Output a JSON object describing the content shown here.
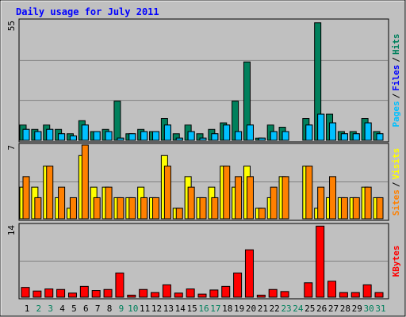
{
  "chart_data": [
    {
      "type": "bar",
      "title": "Daily usage for July 2011",
      "ylim": [
        0,
        55
      ],
      "yticks": [
        55
      ],
      "legend_separator": "/",
      "series": [
        {
          "name": "Hits",
          "color": "#00805c",
          "values": [
            7,
            5,
            7,
            5,
            3,
            9,
            4,
            5,
            18,
            3,
            5,
            4,
            10,
            3,
            7,
            3,
            5,
            8,
            18,
            36,
            1,
            7,
            6,
            0,
            10,
            54,
            12,
            4,
            4,
            10,
            4
          ]
        },
        {
          "name": "Files",
          "color": "#0000ff",
          "values": [
            5,
            4,
            5,
            3,
            2,
            7,
            4,
            4,
            1,
            3,
            4,
            4,
            7,
            1,
            4,
            1,
            3,
            7,
            4,
            7,
            1,
            4,
            4,
            0,
            7,
            12,
            8,
            3,
            3,
            8,
            3
          ]
        },
        {
          "name": "Pages",
          "color": "#00c0ff",
          "values": [
            5,
            4,
            5,
            3,
            2,
            7,
            4,
            4,
            1,
            3,
            4,
            4,
            7,
            1,
            4,
            1,
            3,
            7,
            4,
            7,
            1,
            4,
            4,
            0,
            7,
            12,
            8,
            3,
            3,
            8,
            3
          ]
        }
      ]
    },
    {
      "type": "bar",
      "ylim": [
        0,
        7
      ],
      "yticks": [
        7
      ],
      "legend_separator": "/",
      "series": [
        {
          "name": "Visits",
          "color": "#ffff00",
          "values": [
            3,
            3,
            5,
            2,
            1,
            6,
            3,
            3,
            2,
            2,
            3,
            2,
            6,
            1,
            4,
            2,
            3,
            5,
            3,
            5,
            1,
            2,
            4,
            0,
            5,
            1,
            2,
            2,
            2,
            3,
            2
          ]
        },
        {
          "name": "Sites",
          "color": "#ff8000",
          "values": [
            4,
            2,
            5,
            3,
            2,
            7,
            2,
            3,
            2,
            2,
            2,
            2,
            5,
            1,
            3,
            2,
            2,
            5,
            4,
            4,
            1,
            3,
            4,
            0,
            5,
            3,
            4,
            2,
            2,
            3,
            2
          ]
        }
      ]
    },
    {
      "type": "bar",
      "ylim": [
        0,
        14
      ],
      "yticks": [
        14
      ],
      "categories": [
        "1",
        "2",
        "3",
        "4",
        "5",
        "6",
        "7",
        "8",
        "9",
        "10",
        "11",
        "12",
        "13",
        "14",
        "15",
        "16",
        "17",
        "18",
        "19",
        "20",
        "21",
        "22",
        "23",
        "24",
        "25",
        "26",
        "27",
        "28",
        "29",
        "30",
        "31"
      ],
      "label_colors": [
        "#000",
        "#00805c",
        "#00805c",
        "#000",
        "#000",
        "#000",
        "#000",
        "#000",
        "#00805c",
        "#00805c",
        "#000",
        "#000",
        "#000",
        "#000",
        "#000",
        "#00805c",
        "#00805c",
        "#000",
        "#000",
        "#000",
        "#000",
        "#000",
        "#00805c",
        "#00805c",
        "#000",
        "#000",
        "#000",
        "#000",
        "#000",
        "#00805c",
        "#00805c"
      ],
      "series": [
        {
          "name": "KBytes",
          "color": "#ff0000",
          "values": [
            1.9,
            1.2,
            1.6,
            1.5,
            0.8,
            2.1,
            1.3,
            1.5,
            4.7,
            0.4,
            1.5,
            0.9,
            2.4,
            0.8,
            1.6,
            0.6,
            1.4,
            2.1,
            4.7,
            9.2,
            0.4,
            1.5,
            1.1,
            0,
            2.8,
            13.8,
            3.1,
            0.9,
            0.9,
            2.4,
            0.9
          ]
        }
      ]
    }
  ]
}
